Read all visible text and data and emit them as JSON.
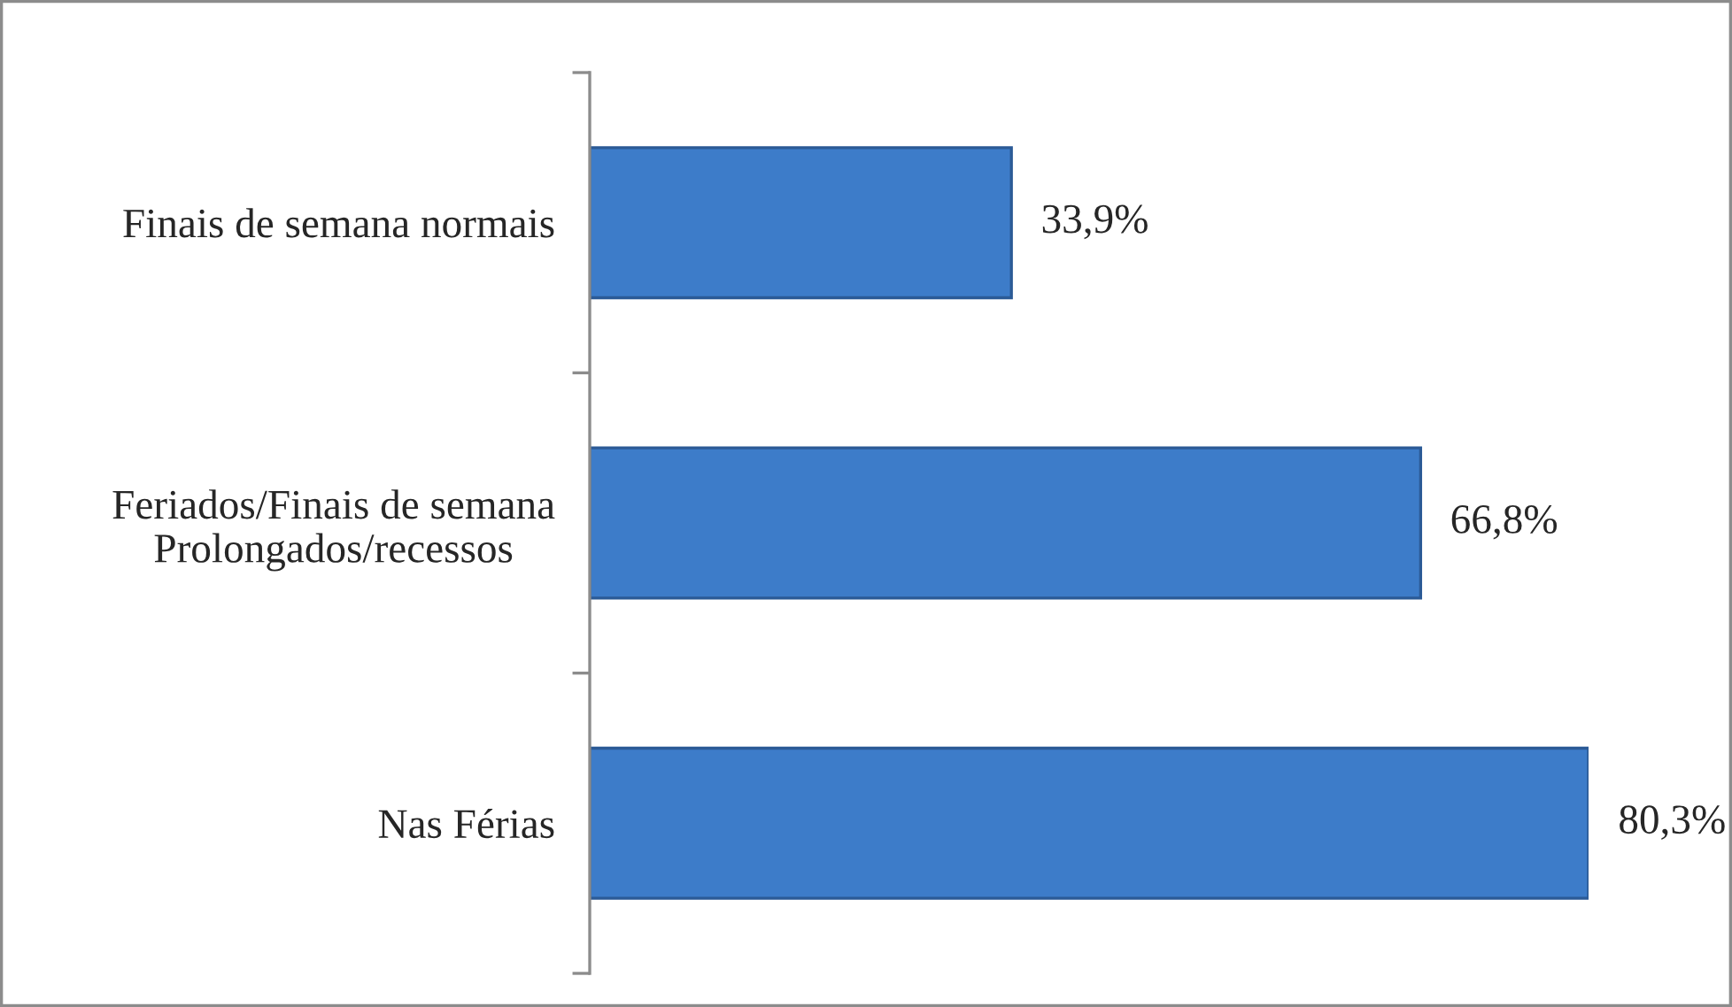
{
  "chart_data": {
    "type": "bar",
    "orientation": "horizontal",
    "categories": [
      "Finais de semana normais",
      "Feriados/Finais de semana\nProlongados/recessos",
      "Nas Férias"
    ],
    "values": [
      33.9,
      66.8,
      80.3
    ],
    "color": "#3d7cc9",
    "value_labels": [
      "33,9%",
      "66,8%",
      "80,3%"
    ],
    "tick_labels": "y"
  }
}
